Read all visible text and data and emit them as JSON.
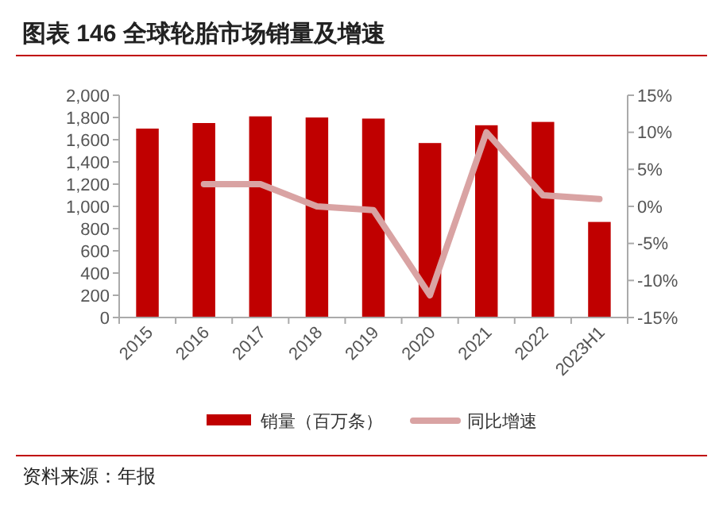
{
  "chart_data": {
    "type": "bar",
    "title": "图表 146 全球轮胎市场销量及增速",
    "categories": [
      "2015",
      "2016",
      "2017",
      "2018",
      "2019",
      "2020",
      "2021",
      "2022",
      "2023H1"
    ],
    "series": [
      {
        "name": "销量（百万条）",
        "color": "#c00000",
        "values": [
          1700,
          1750,
          1810,
          1800,
          1790,
          1570,
          1730,
          1760,
          860
        ]
      },
      {
        "name": "同比增速",
        "type": "line",
        "axis": "y2",
        "color": "#d9a3a3",
        "values": [
          null,
          3,
          3,
          0,
          -0.5,
          -12,
          10,
          1.5,
          1
        ]
      }
    ],
    "ylim": [
      0,
      2000
    ],
    "yticks": [
      {
        "value": 0,
        "label": "0"
      },
      {
        "value": 200,
        "label": "200"
      },
      {
        "value": 400,
        "label": "400"
      },
      {
        "value": 600,
        "label": "600"
      },
      {
        "value": 800,
        "label": "800"
      },
      {
        "value": 1000,
        "label": "1,000"
      },
      {
        "value": 1200,
        "label": "1,200"
      },
      {
        "value": 1400,
        "label": "1,400"
      },
      {
        "value": 1600,
        "label": "1,600"
      },
      {
        "value": 1800,
        "label": "1,800"
      },
      {
        "value": 2000,
        "label": "2,000"
      }
    ],
    "y2lim": [
      -15,
      15
    ],
    "y2ticks": [
      {
        "value": -15,
        "label": "-15%"
      },
      {
        "value": -10,
        "label": "-10%"
      },
      {
        "value": -5,
        "label": "-5%"
      },
      {
        "value": 0,
        "label": "0%"
      },
      {
        "value": 5,
        "label": "5%"
      },
      {
        "value": 10,
        "label": "10%"
      },
      {
        "value": 15,
        "label": "15%"
      }
    ],
    "legend": "bottom",
    "grid": false,
    "annotations": [
      "资料来源：年报"
    ]
  }
}
